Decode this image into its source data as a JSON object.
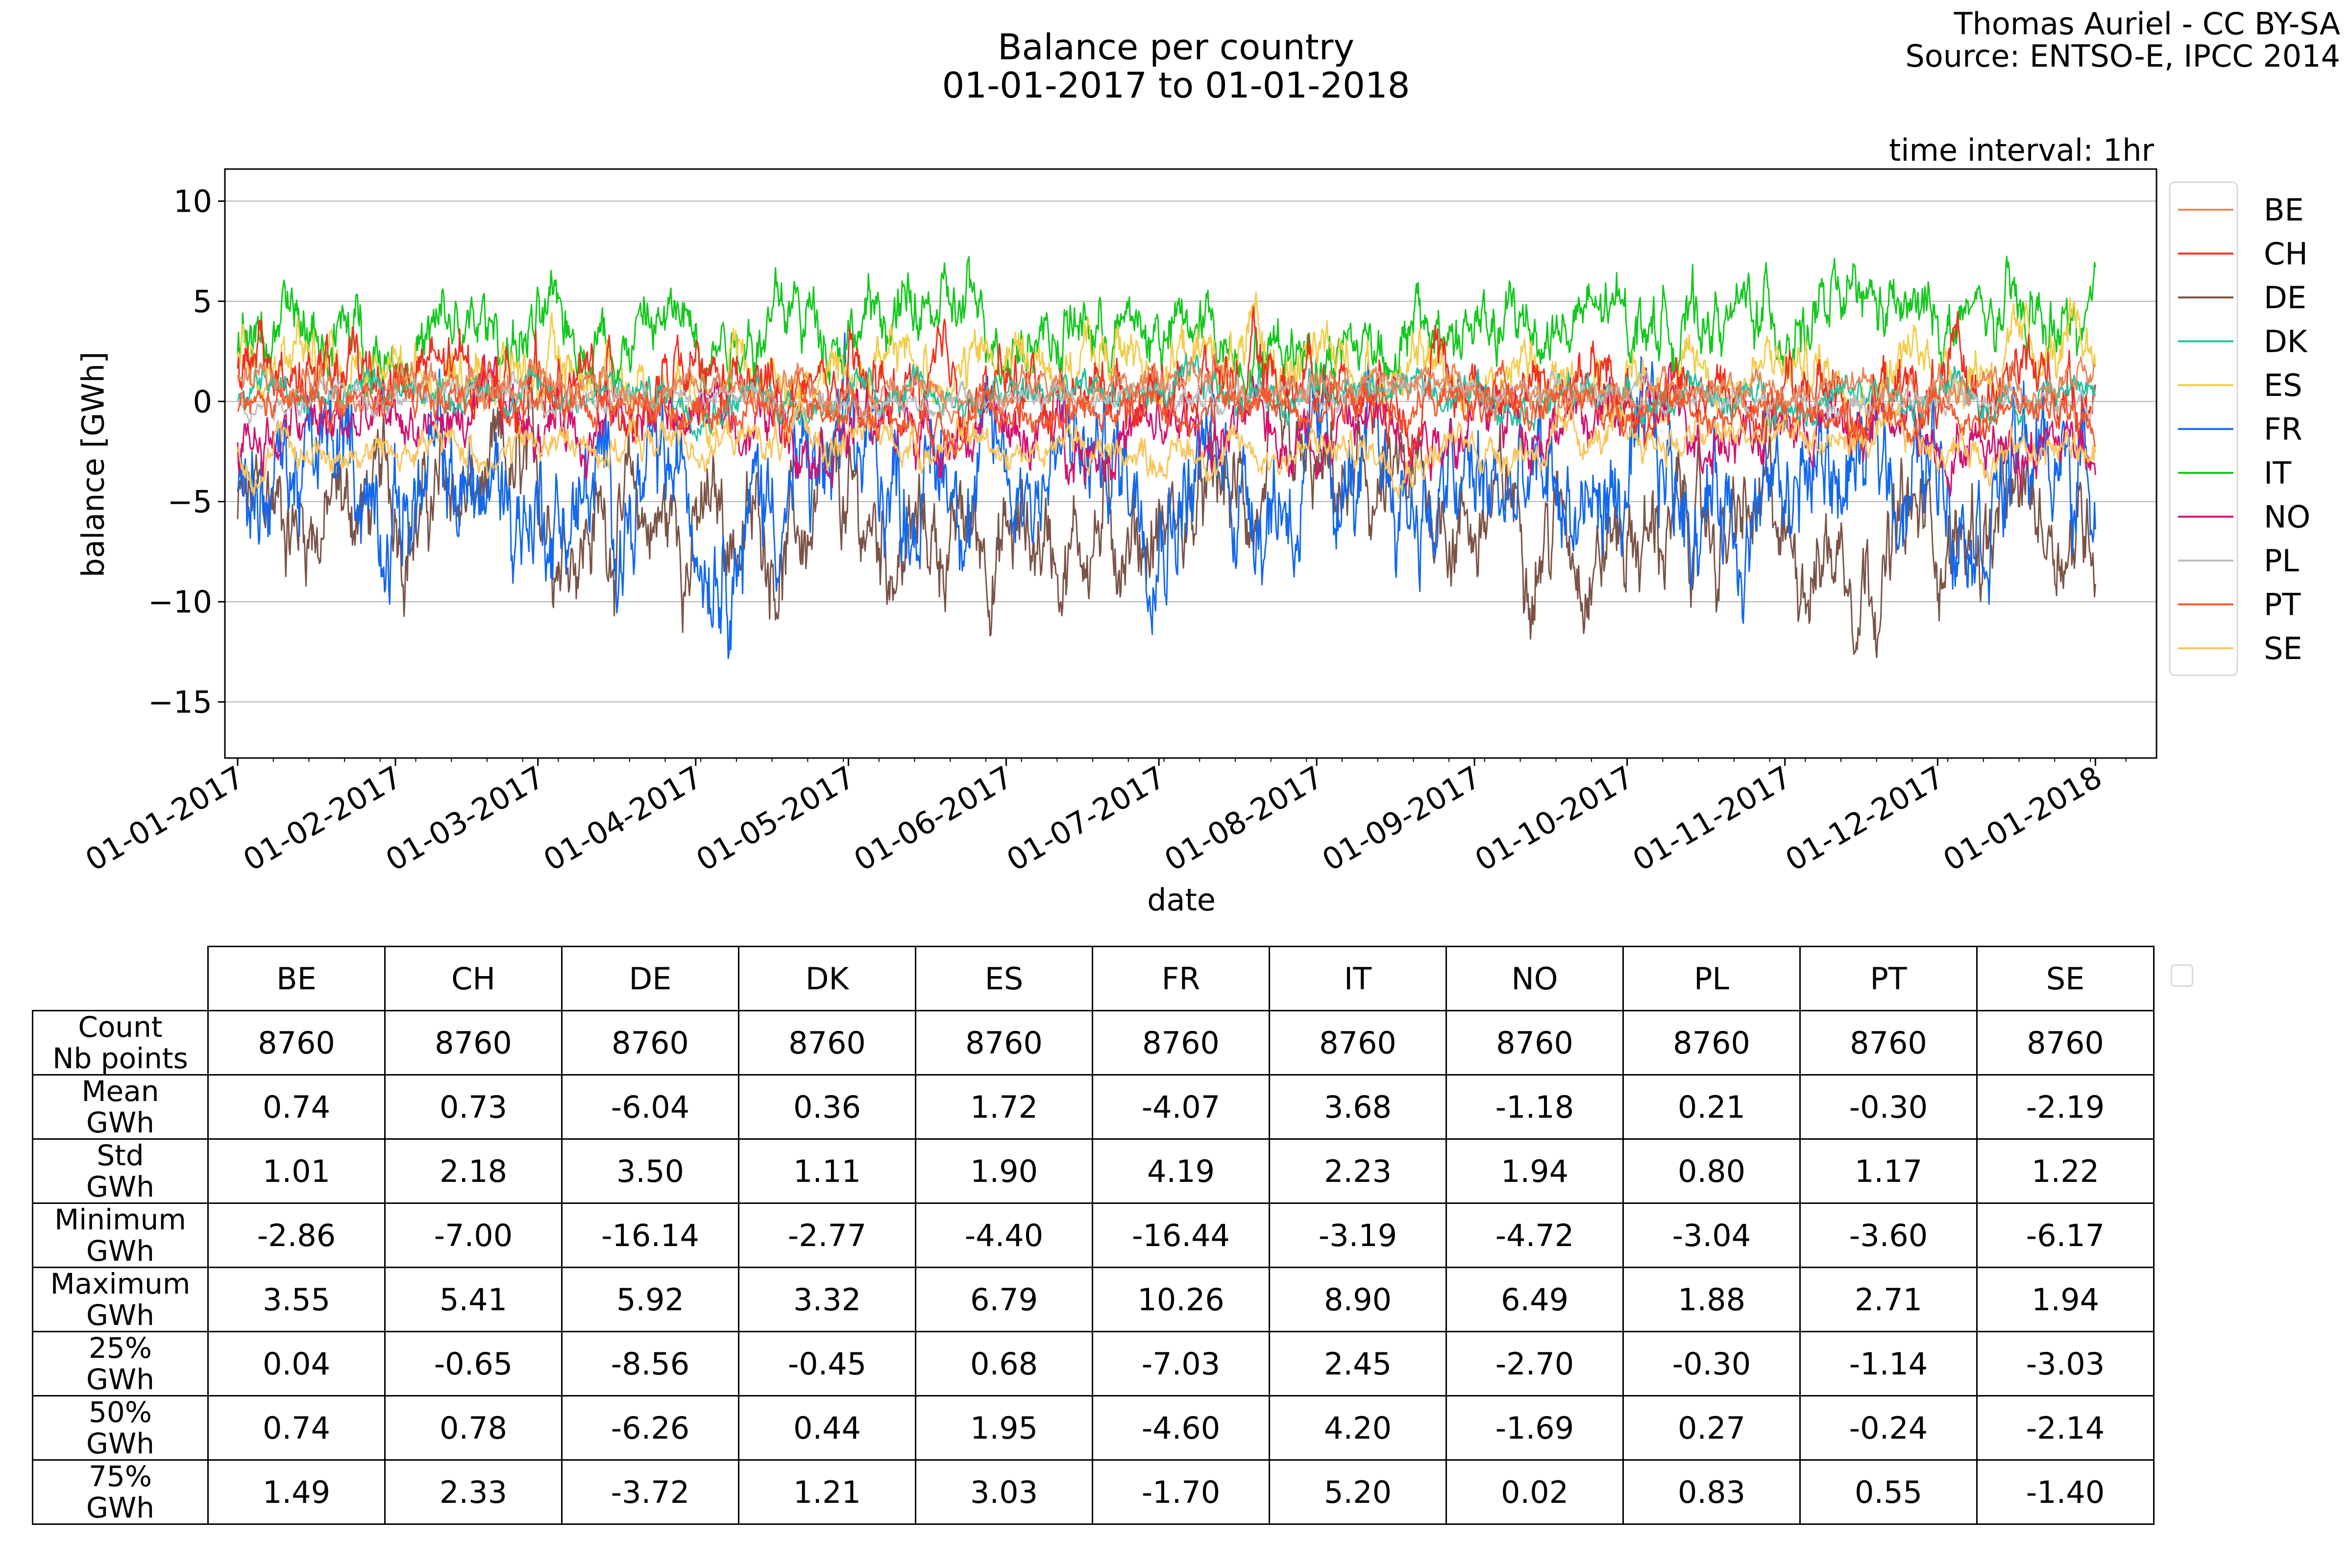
{
  "header": {
    "title_line1": "Balance per country",
    "title_line2": "01-01-2017 to 01-01-2018",
    "credit_line1": "Thomas Auriel - CC BY-SA",
    "credit_line2": "Source: ENTSO-E, IPCC 2014",
    "interval": "time interval: 1hr"
  },
  "chart_data": {
    "type": "line",
    "title": "Balance per country 01-01-2017 to 01-01-2018",
    "xlabel": "date",
    "ylabel": "balance [GWh]",
    "ylim": [
      -17.8,
      11.6
    ],
    "yticks": [
      10,
      5,
      0,
      -5,
      -10,
      -15
    ],
    "ytick_labels": [
      "10",
      "5",
      "0",
      "−5",
      "−10",
      "−15"
    ],
    "xlim_days": [
      -2.5,
      377
    ],
    "xticks_days": [
      0,
      31,
      59,
      90,
      120,
      151,
      181,
      212,
      243,
      273,
      304,
      334,
      365
    ],
    "xtick_labels": [
      "01-01-2017",
      "01-02-2017",
      "01-03-2017",
      "01-04-2017",
      "01-05-2017",
      "01-06-2017",
      "01-07-2017",
      "01-08-2017",
      "01-09-2017",
      "01-10-2017",
      "01-11-2017",
      "01-12-2017",
      "01-01-2018"
    ],
    "grid": "horizontal",
    "legend": "right, outside",
    "series": [
      {
        "name": "BE",
        "color": "#e8875a",
        "mean": 0.74,
        "std": 1.01,
        "min": -2.86,
        "max": 3.55,
        "q25": 0.04,
        "q50": 0.74,
        "q75": 1.49
      },
      {
        "name": "CH",
        "color": "#f03020",
        "mean": 0.73,
        "std": 2.18,
        "min": -7.0,
        "max": 5.41,
        "q25": -0.65,
        "q50": 0.78,
        "q75": 2.33
      },
      {
        "name": "DE",
        "color": "#7b5346",
        "mean": -6.04,
        "std": 3.5,
        "min": -16.14,
        "max": 5.92,
        "q25": -8.56,
        "q50": -6.26,
        "q75": -3.72
      },
      {
        "name": "DK",
        "color": "#22c3a1",
        "mean": 0.36,
        "std": 1.11,
        "min": -2.77,
        "max": 3.32,
        "q25": -0.45,
        "q50": 0.44,
        "q75": 1.21
      },
      {
        "name": "ES",
        "color": "#f2cd4b",
        "mean": 1.72,
        "std": 1.9,
        "min": -4.4,
        "max": 6.79,
        "q25": 0.68,
        "q50": 1.95,
        "q75": 3.03
      },
      {
        "name": "FR",
        "color": "#1268ee",
        "mean": -4.07,
        "std": 4.19,
        "min": -16.44,
        "max": 10.26,
        "q25": -7.03,
        "q50": -4.6,
        "q75": -1.7
      },
      {
        "name": "IT",
        "color": "#14c81e",
        "mean": 3.68,
        "std": 2.23,
        "min": -3.19,
        "max": 8.9,
        "q25": 2.45,
        "q50": 4.2,
        "q75": 5.2
      },
      {
        "name": "NO",
        "color": "#d3126f",
        "mean": -1.18,
        "std": 1.94,
        "min": -4.72,
        "max": 6.49,
        "q25": -2.7,
        "q50": -1.69,
        "q75": 0.02
      },
      {
        "name": "PL",
        "color": "#bdbdbd",
        "mean": 0.21,
        "std": 0.8,
        "min": -3.04,
        "max": 1.88,
        "q25": -0.3,
        "q50": 0.27,
        "q75": 0.83
      },
      {
        "name": "PT",
        "color": "#f4592e",
        "mean": -0.3,
        "std": 1.17,
        "min": -3.6,
        "max": 2.71,
        "q25": -1.14,
        "q50": -0.24,
        "q75": 0.55
      },
      {
        "name": "SE",
        "color": "#f8c55c",
        "mean": -2.19,
        "std": 1.22,
        "min": -6.17,
        "max": 1.94,
        "q25": -3.03,
        "q50": -2.14,
        "q75": -1.4
      }
    ]
  },
  "table": {
    "columns": [
      "BE",
      "CH",
      "DE",
      "DK",
      "ES",
      "FR",
      "IT",
      "NO",
      "PL",
      "PT",
      "SE"
    ],
    "rows": [
      {
        "label1": "Count",
        "label2": "Nb points",
        "values": [
          "8760",
          "8760",
          "8760",
          "8760",
          "8760",
          "8760",
          "8760",
          "8760",
          "8760",
          "8760",
          "8760"
        ]
      },
      {
        "label1": "Mean",
        "label2": "GWh",
        "values": [
          "0.74",
          "0.73",
          "-6.04",
          "0.36",
          "1.72",
          "-4.07",
          "3.68",
          "-1.18",
          "0.21",
          "-0.30",
          "-2.19"
        ]
      },
      {
        "label1": "Std",
        "label2": "GWh",
        "values": [
          "1.01",
          "2.18",
          "3.50",
          "1.11",
          "1.90",
          "4.19",
          "2.23",
          "1.94",
          "0.80",
          "1.17",
          "1.22"
        ]
      },
      {
        "label1": "Minimum",
        "label2": "GWh",
        "values": [
          "-2.86",
          "-7.00",
          "-16.14",
          "-2.77",
          "-4.40",
          "-16.44",
          "-3.19",
          "-4.72",
          "-3.04",
          "-3.60",
          "-6.17"
        ]
      },
      {
        "label1": "Maximum",
        "label2": "GWh",
        "values": [
          "3.55",
          "5.41",
          "5.92",
          "3.32",
          "6.79",
          "10.26",
          "8.90",
          "6.49",
          "1.88",
          "2.71",
          "1.94"
        ]
      },
      {
        "label1": "25%",
        "label2": "GWh",
        "values": [
          "0.04",
          "-0.65",
          "-8.56",
          "-0.45",
          "0.68",
          "-7.03",
          "2.45",
          "-2.70",
          "-0.30",
          "-1.14",
          "-3.03"
        ]
      },
      {
        "label1": "50%",
        "label2": "GWh",
        "values": [
          "0.74",
          "0.78",
          "-6.26",
          "0.44",
          "1.95",
          "-4.60",
          "4.20",
          "-1.69",
          "0.27",
          "-0.24",
          "-2.14"
        ]
      },
      {
        "label1": "75%",
        "label2": "GWh",
        "values": [
          "1.49",
          "2.33",
          "-3.72",
          "1.21",
          "3.03",
          "-1.70",
          "5.20",
          "0.02",
          "0.83",
          "0.55",
          "-1.40"
        ]
      }
    ]
  }
}
